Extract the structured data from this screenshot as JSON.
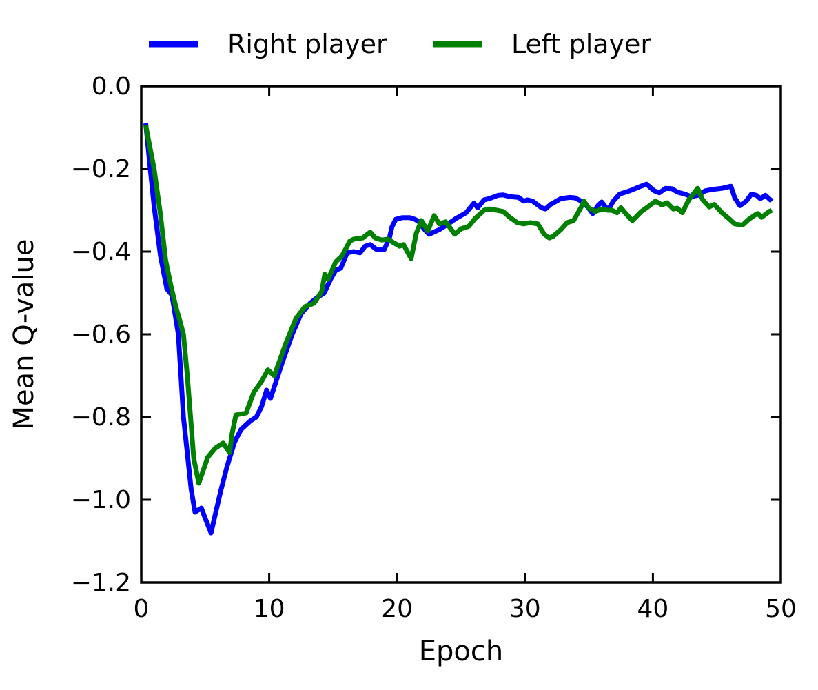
{
  "chart_data": {
    "type": "line",
    "title": "",
    "xlabel": "Epoch",
    "ylabel": "Mean Q-value",
    "xlim": [
      0,
      50
    ],
    "ylim": [
      -1.2,
      0.0
    ],
    "grid": false,
    "x_ticks": [
      0,
      10,
      20,
      30,
      40,
      50
    ],
    "x_tick_labels": [
      "0",
      "10",
      "20",
      "30",
      "40",
      "50"
    ],
    "y_ticks": [
      0.0,
      -0.2,
      -0.4,
      -0.6,
      -0.8,
      -1.0,
      -1.2
    ],
    "y_tick_labels": [
      "0.0",
      "−0.2",
      "−0.4",
      "−0.6",
      "−0.8",
      "−1.0",
      "−1.2"
    ],
    "legend": {
      "position": "top-center-above-axes",
      "frame": false
    },
    "series": [
      {
        "name": "Right player",
        "color": "#0000ff",
        "points": [
          [
            0.35,
            -0.09
          ],
          [
            0.7,
            -0.2
          ],
          [
            1.0,
            -0.29
          ],
          [
            1.5,
            -0.41
          ],
          [
            2.0,
            -0.49
          ],
          [
            2.4,
            -0.505
          ],
          [
            2.9,
            -0.6
          ],
          [
            3.3,
            -0.8
          ],
          [
            3.9,
            -0.975
          ],
          [
            4.2,
            -1.03
          ],
          [
            4.7,
            -1.02
          ],
          [
            5.0,
            -1.045
          ],
          [
            5.45,
            -1.08
          ],
          [
            6.2,
            -0.98
          ],
          [
            6.7,
            -0.92
          ],
          [
            7.3,
            -0.86
          ],
          [
            7.8,
            -0.83
          ],
          [
            8.5,
            -0.81
          ],
          [
            9.0,
            -0.8
          ],
          [
            9.4,
            -0.775
          ],
          [
            9.8,
            -0.735
          ],
          [
            10.1,
            -0.755
          ],
          [
            11.0,
            -0.67
          ],
          [
            11.8,
            -0.6
          ],
          [
            12.5,
            -0.55
          ],
          [
            13.2,
            -0.525
          ],
          [
            13.8,
            -0.51
          ],
          [
            14.3,
            -0.5
          ],
          [
            14.8,
            -0.467
          ],
          [
            15.2,
            -0.445
          ],
          [
            15.6,
            -0.44
          ],
          [
            16.1,
            -0.403
          ],
          [
            16.6,
            -0.4
          ],
          [
            17.1,
            -0.403
          ],
          [
            17.5,
            -0.387
          ],
          [
            17.9,
            -0.383
          ],
          [
            18.4,
            -0.395
          ],
          [
            19.0,
            -0.395
          ],
          [
            19.4,
            -0.367
          ],
          [
            19.6,
            -0.34
          ],
          [
            19.9,
            -0.322
          ],
          [
            20.4,
            -0.318
          ],
          [
            21.0,
            -0.318
          ],
          [
            21.4,
            -0.322
          ],
          [
            21.8,
            -0.33
          ],
          [
            22.1,
            -0.345
          ],
          [
            22.5,
            -0.358
          ],
          [
            23.3,
            -0.347
          ],
          [
            24.0,
            -0.333
          ],
          [
            24.6,
            -0.32
          ],
          [
            25.4,
            -0.306
          ],
          [
            26.0,
            -0.283
          ],
          [
            26.3,
            -0.294
          ],
          [
            26.8,
            -0.275
          ],
          [
            27.2,
            -0.272
          ],
          [
            27.9,
            -0.264
          ],
          [
            28.3,
            -0.263
          ],
          [
            28.8,
            -0.267
          ],
          [
            29.5,
            -0.269
          ],
          [
            29.9,
            -0.278
          ],
          [
            30.2,
            -0.275
          ],
          [
            30.6,
            -0.278
          ],
          [
            31.3,
            -0.294
          ],
          [
            31.6,
            -0.297
          ],
          [
            32.0,
            -0.286
          ],
          [
            32.8,
            -0.272
          ],
          [
            33.5,
            -0.269
          ],
          [
            33.9,
            -0.27
          ],
          [
            34.4,
            -0.278
          ],
          [
            34.9,
            -0.292
          ],
          [
            35.3,
            -0.308
          ],
          [
            35.7,
            -0.289
          ],
          [
            36.0,
            -0.28
          ],
          [
            36.5,
            -0.3
          ],
          [
            36.9,
            -0.278
          ],
          [
            37.4,
            -0.261
          ],
          [
            38.2,
            -0.253
          ],
          [
            38.9,
            -0.244
          ],
          [
            39.5,
            -0.237
          ],
          [
            40.1,
            -0.253
          ],
          [
            40.5,
            -0.258
          ],
          [
            41.0,
            -0.247
          ],
          [
            41.5,
            -0.248
          ],
          [
            41.9,
            -0.256
          ],
          [
            42.5,
            -0.261
          ],
          [
            43.0,
            -0.267
          ],
          [
            43.5,
            -0.264
          ],
          [
            44.1,
            -0.253
          ],
          [
            44.6,
            -0.25
          ],
          [
            45.4,
            -0.247
          ],
          [
            46.1,
            -0.242
          ],
          [
            46.4,
            -0.27
          ],
          [
            46.8,
            -0.289
          ],
          [
            47.3,
            -0.278
          ],
          [
            47.7,
            -0.261
          ],
          [
            48.1,
            -0.264
          ],
          [
            48.4,
            -0.272
          ],
          [
            48.8,
            -0.264
          ],
          [
            49.3,
            -0.278
          ]
        ]
      },
      {
        "name": "Left player",
        "color": "#008000",
        "points": [
          [
            0.35,
            -0.095
          ],
          [
            1.0,
            -0.2
          ],
          [
            1.5,
            -0.31
          ],
          [
            1.9,
            -0.42
          ],
          [
            2.3,
            -0.48
          ],
          [
            2.7,
            -0.533
          ],
          [
            3.0,
            -0.565
          ],
          [
            3.3,
            -0.6
          ],
          [
            3.6,
            -0.7
          ],
          [
            3.85,
            -0.8
          ],
          [
            4.1,
            -0.9
          ],
          [
            4.5,
            -0.96
          ],
          [
            5.2,
            -0.897
          ],
          [
            5.8,
            -0.875
          ],
          [
            6.4,
            -0.863
          ],
          [
            6.9,
            -0.886
          ],
          [
            7.1,
            -0.84
          ],
          [
            7.4,
            -0.795
          ],
          [
            8.2,
            -0.79
          ],
          [
            8.8,
            -0.74
          ],
          [
            9.4,
            -0.714
          ],
          [
            9.9,
            -0.686
          ],
          [
            10.4,
            -0.7
          ],
          [
            11.3,
            -0.622
          ],
          [
            12.1,
            -0.561
          ],
          [
            12.8,
            -0.533
          ],
          [
            13.5,
            -0.525
          ],
          [
            14.1,
            -0.497
          ],
          [
            14.35,
            -0.455
          ],
          [
            14.6,
            -0.467
          ],
          [
            15.2,
            -0.425
          ],
          [
            15.7,
            -0.41
          ],
          [
            16.3,
            -0.375
          ],
          [
            16.6,
            -0.37
          ],
          [
            17.3,
            -0.367
          ],
          [
            17.9,
            -0.353
          ],
          [
            18.3,
            -0.367
          ],
          [
            18.8,
            -0.372
          ],
          [
            19.3,
            -0.37
          ],
          [
            19.7,
            -0.378
          ],
          [
            20.2,
            -0.387
          ],
          [
            20.5,
            -0.383
          ],
          [
            21.1,
            -0.417
          ],
          [
            21.5,
            -0.356
          ],
          [
            21.9,
            -0.325
          ],
          [
            22.4,
            -0.35
          ],
          [
            22.9,
            -0.313
          ],
          [
            23.3,
            -0.333
          ],
          [
            23.8,
            -0.328
          ],
          [
            24.2,
            -0.345
          ],
          [
            24.5,
            -0.358
          ],
          [
            25.0,
            -0.345
          ],
          [
            25.6,
            -0.339
          ],
          [
            26.1,
            -0.32
          ],
          [
            26.8,
            -0.3
          ],
          [
            27.2,
            -0.297
          ],
          [
            27.8,
            -0.3
          ],
          [
            28.3,
            -0.303
          ],
          [
            28.8,
            -0.317
          ],
          [
            29.4,
            -0.33
          ],
          [
            29.9,
            -0.333
          ],
          [
            30.4,
            -0.33
          ],
          [
            31.0,
            -0.333
          ],
          [
            31.5,
            -0.358
          ],
          [
            31.9,
            -0.367
          ],
          [
            32.2,
            -0.363
          ],
          [
            32.8,
            -0.347
          ],
          [
            33.3,
            -0.33
          ],
          [
            33.8,
            -0.325
          ],
          [
            34.4,
            -0.292
          ],
          [
            34.6,
            -0.278
          ],
          [
            35.0,
            -0.295
          ],
          [
            35.5,
            -0.303
          ],
          [
            36.0,
            -0.297
          ],
          [
            36.5,
            -0.3
          ],
          [
            36.8,
            -0.3
          ],
          [
            37.2,
            -0.306
          ],
          [
            37.5,
            -0.294
          ],
          [
            38.2,
            -0.319
          ],
          [
            38.4,
            -0.325
          ],
          [
            39.1,
            -0.303
          ],
          [
            39.6,
            -0.292
          ],
          [
            40.2,
            -0.278
          ],
          [
            40.7,
            -0.287
          ],
          [
            41.1,
            -0.282
          ],
          [
            41.6,
            -0.297
          ],
          [
            41.9,
            -0.295
          ],
          [
            42.3,
            -0.306
          ],
          [
            42.8,
            -0.275
          ],
          [
            43.5,
            -0.247
          ],
          [
            43.9,
            -0.275
          ],
          [
            44.4,
            -0.292
          ],
          [
            44.8,
            -0.286
          ],
          [
            45.4,
            -0.306
          ],
          [
            45.9,
            -0.319
          ],
          [
            46.4,
            -0.333
          ],
          [
            47.0,
            -0.336
          ],
          [
            47.5,
            -0.322
          ],
          [
            48.0,
            -0.311
          ],
          [
            48.2,
            -0.308
          ],
          [
            48.5,
            -0.317
          ],
          [
            49.1,
            -0.303
          ],
          [
            49.3,
            -0.3
          ]
        ]
      }
    ]
  }
}
